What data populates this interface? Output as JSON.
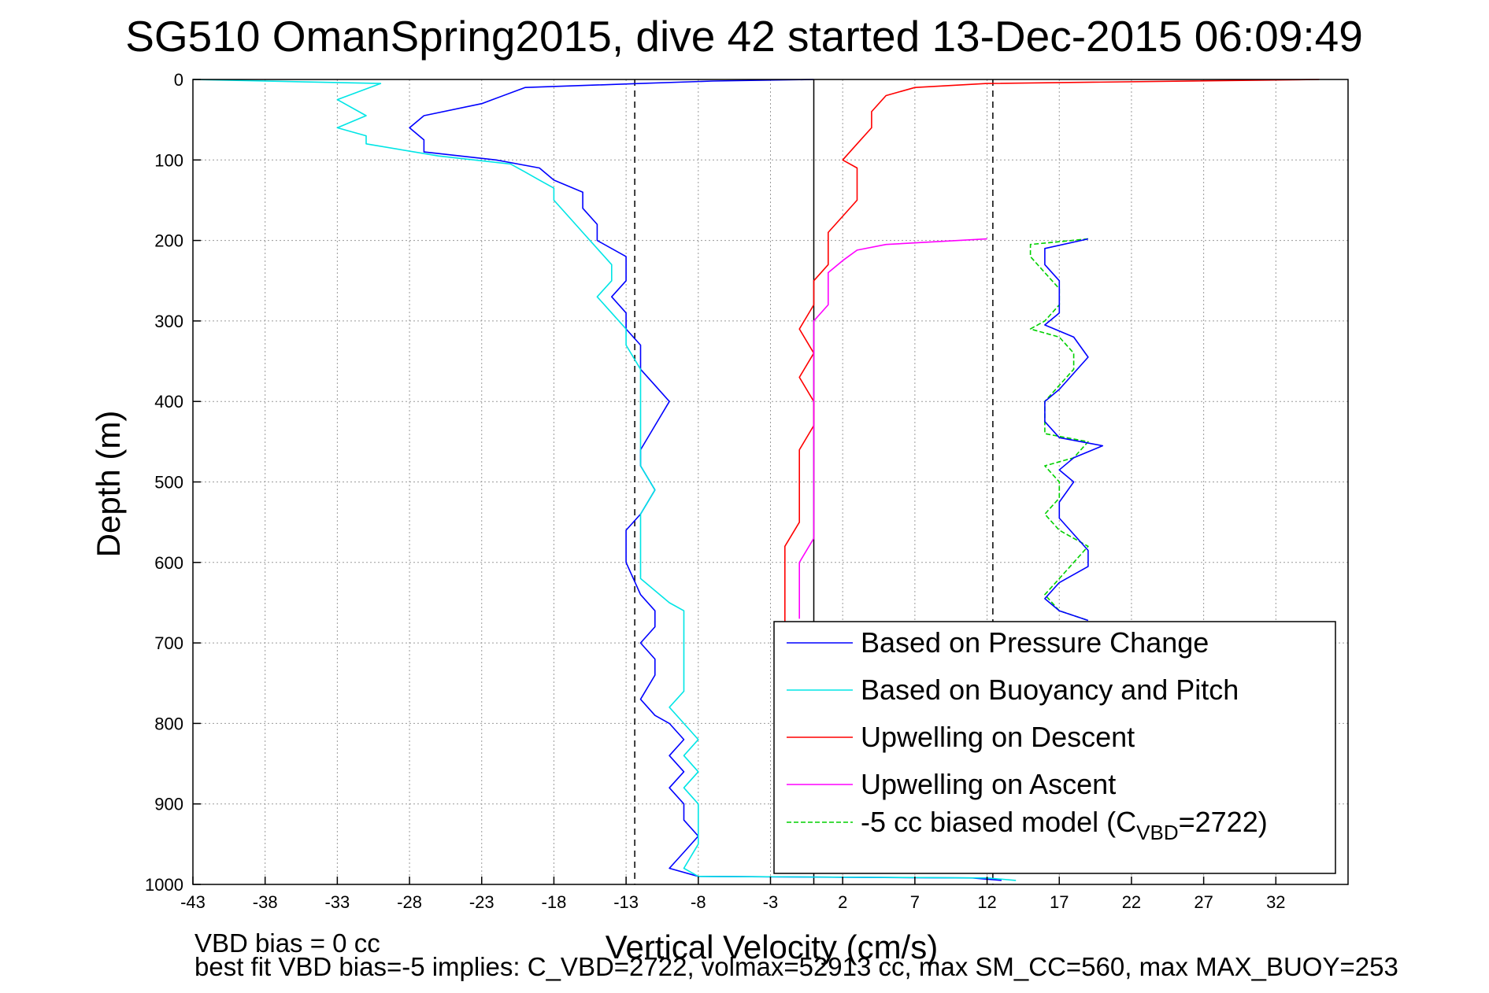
{
  "chart_data": {
    "type": "line",
    "title": "SG510 OmanSpring2015, dive 42 started 13-Dec-2015 06:09:49",
    "xlabel": "Vertical Velocity (cm/s)",
    "ylabel": "Depth (m)",
    "xlim": [
      -43,
      37
    ],
    "ylim": [
      0,
      1000
    ],
    "y_reversed": true,
    "grid": true,
    "legend_position": "bottom-right",
    "x_ticks": [
      -43,
      -38,
      -33,
      -28,
      -23,
      -18,
      -13,
      -8,
      -3,
      2,
      7,
      12,
      17,
      22,
      27,
      32
    ],
    "y_ticks": [
      0,
      100,
      200,
      300,
      400,
      500,
      600,
      700,
      800,
      900,
      1000
    ],
    "reference_lines": [
      {
        "x": -12.4,
        "style": "dashed"
      },
      {
        "x": 0,
        "style": "solid"
      },
      {
        "x": 12.4,
        "style": "dashed"
      }
    ],
    "series": [
      {
        "name": "Based on Pressure Change",
        "color": "#0000ff",
        "points": [
          [
            0,
            0
          ],
          [
            -7,
            2
          ],
          [
            -12,
            5
          ],
          [
            -20,
            10
          ],
          [
            -23,
            30
          ],
          [
            -27,
            45
          ],
          [
            -28,
            60
          ],
          [
            -27,
            75
          ],
          [
            -27,
            90
          ],
          [
            -22,
            100
          ],
          [
            -19,
            110
          ],
          [
            -18,
            125
          ],
          [
            -16,
            140
          ],
          [
            -16,
            160
          ],
          [
            -15,
            180
          ],
          [
            -15,
            200
          ],
          [
            -13,
            220
          ],
          [
            -13,
            250
          ],
          [
            -14,
            270
          ],
          [
            -13,
            290
          ],
          [
            -13,
            310
          ],
          [
            -12,
            330
          ],
          [
            -12,
            360
          ],
          [
            -11,
            380
          ],
          [
            -10,
            400
          ],
          [
            -11,
            430
          ],
          [
            -12,
            460
          ],
          [
            -12,
            480
          ],
          [
            -11,
            510
          ],
          [
            -12,
            540
          ],
          [
            -13,
            560
          ],
          [
            -13,
            580
          ],
          [
            -13,
            600
          ],
          [
            -12,
            640
          ],
          [
            -11,
            660
          ],
          [
            -11,
            680
          ],
          [
            -12,
            700
          ],
          [
            -11,
            720
          ],
          [
            -11,
            740
          ],
          [
            -12,
            770
          ],
          [
            -11,
            790
          ],
          [
            -10,
            800
          ],
          [
            -9,
            820
          ],
          [
            -10,
            840
          ],
          [
            -9,
            860
          ],
          [
            -10,
            880
          ],
          [
            -9,
            900
          ],
          [
            -9,
            920
          ],
          [
            -8,
            940
          ],
          [
            -9,
            960
          ],
          [
            -10,
            980
          ],
          [
            -8,
            990
          ],
          [
            11,
            992
          ],
          [
            13,
            995
          ]
        ]
      },
      {
        "name": "Based on Buoyancy and Pitch",
        "color": "#00e5e5",
        "points": [
          [
            -43,
            0
          ],
          [
            -30,
            5
          ],
          [
            -33,
            25
          ],
          [
            -31,
            45
          ],
          [
            -33,
            60
          ],
          [
            -31,
            70
          ],
          [
            -31,
            80
          ],
          [
            -26,
            95
          ],
          [
            -21,
            105
          ],
          [
            -20,
            115
          ],
          [
            -19,
            125
          ],
          [
            -18,
            135
          ],
          [
            -18,
            150
          ],
          [
            -17,
            170
          ],
          [
            -16,
            190
          ],
          [
            -15,
            210
          ],
          [
            -14,
            230
          ],
          [
            -14,
            250
          ],
          [
            -15,
            270
          ],
          [
            -14,
            290
          ],
          [
            -13,
            310
          ],
          [
            -13,
            330
          ],
          [
            -12,
            360
          ],
          [
            -12,
            380
          ],
          [
            -12,
            400
          ],
          [
            -12,
            430
          ],
          [
            -12,
            460
          ],
          [
            -12,
            480
          ],
          [
            -11,
            510
          ],
          [
            -12,
            540
          ],
          [
            -12,
            560
          ],
          [
            -12,
            580
          ],
          [
            -12,
            600
          ],
          [
            -12,
            620
          ],
          [
            -10,
            650
          ],
          [
            -9,
            660
          ],
          [
            -9,
            700
          ],
          [
            -9,
            730
          ],
          [
            -9,
            760
          ],
          [
            -10,
            780
          ],
          [
            -9,
            800
          ],
          [
            -8,
            820
          ],
          [
            -9,
            840
          ],
          [
            -8,
            860
          ],
          [
            -9,
            880
          ],
          [
            -8,
            900
          ],
          [
            -8,
            920
          ],
          [
            -8,
            950
          ],
          [
            -9,
            980
          ],
          [
            -8,
            990
          ],
          [
            12,
            992
          ],
          [
            14,
            995
          ]
        ]
      },
      {
        "name": "Upwelling on Descent",
        "color": "#ff0000",
        "points": [
          [
            35,
            0
          ],
          [
            12,
            5
          ],
          [
            7,
            10
          ],
          [
            5,
            20
          ],
          [
            4,
            40
          ],
          [
            4,
            60
          ],
          [
            3,
            80
          ],
          [
            2,
            100
          ],
          [
            3,
            110
          ],
          [
            3,
            130
          ],
          [
            3,
            150
          ],
          [
            2,
            170
          ],
          [
            1,
            190
          ],
          [
            1,
            210
          ],
          [
            1,
            230
          ],
          [
            0,
            250
          ],
          [
            0,
            280
          ],
          [
            -1,
            310
          ],
          [
            0,
            340
          ],
          [
            -1,
            370
          ],
          [
            0,
            400
          ],
          [
            0,
            430
          ],
          [
            -1,
            460
          ],
          [
            -1,
            490
          ],
          [
            -1,
            520
          ],
          [
            -1,
            550
          ],
          [
            -2,
            580
          ],
          [
            -2,
            610
          ],
          [
            -2,
            640
          ],
          [
            -2,
            660
          ],
          [
            -2,
            675
          ]
        ]
      },
      {
        "name": "Upwelling on Ascent",
        "color": "#ff00ff",
        "points": [
          [
            12,
            198
          ],
          [
            5,
            205
          ],
          [
            3,
            212
          ],
          [
            2,
            225
          ],
          [
            1,
            240
          ],
          [
            1,
            260
          ],
          [
            1,
            280
          ],
          [
            0,
            300
          ],
          [
            0,
            330
          ],
          [
            0,
            360
          ],
          [
            0,
            390
          ],
          [
            0,
            420
          ],
          [
            0,
            450
          ],
          [
            0,
            480
          ],
          [
            0,
            510
          ],
          [
            0,
            540
          ],
          [
            0,
            570
          ],
          [
            -1,
            600
          ],
          [
            -1,
            630
          ],
          [
            -1,
            655
          ],
          [
            -1,
            670
          ]
        ]
      },
      {
        "name": "-5 cc biased model (C_VBD=2722)",
        "color": "#00d000",
        "dashed": true,
        "points": [
          [
            19,
            198
          ],
          [
            15,
            205
          ],
          [
            15,
            220
          ],
          [
            16,
            240
          ],
          [
            17,
            260
          ],
          [
            17,
            280
          ],
          [
            16,
            300
          ],
          [
            15,
            310
          ],
          [
            17,
            320
          ],
          [
            18,
            340
          ],
          [
            18,
            360
          ],
          [
            17,
            380
          ],
          [
            16,
            400
          ],
          [
            16,
            420
          ],
          [
            16,
            440
          ],
          [
            19,
            450
          ],
          [
            18,
            470
          ],
          [
            16,
            480
          ],
          [
            17,
            500
          ],
          [
            17,
            520
          ],
          [
            16,
            540
          ],
          [
            17,
            560
          ],
          [
            19,
            580
          ],
          [
            18,
            600
          ],
          [
            17,
            620
          ],
          [
            16,
            640
          ],
          [
            17,
            660
          ],
          [
            19,
            672
          ]
        ]
      },
      {
        "name": "-5 cc biased model (C_VBD=2722) ascent",
        "color": "#0000ff",
        "points": [
          [
            19,
            198
          ],
          [
            16,
            210
          ],
          [
            16,
            230
          ],
          [
            17,
            250
          ],
          [
            17,
            270
          ],
          [
            17,
            290
          ],
          [
            16,
            305
          ],
          [
            18,
            320
          ],
          [
            19,
            345
          ],
          [
            18,
            365
          ],
          [
            17,
            385
          ],
          [
            16,
            400
          ],
          [
            16,
            425
          ],
          [
            17,
            445
          ],
          [
            20,
            455
          ],
          [
            18,
            470
          ],
          [
            17,
            485
          ],
          [
            18,
            500
          ],
          [
            17,
            525
          ],
          [
            17,
            545
          ],
          [
            18,
            565
          ],
          [
            19,
            585
          ],
          [
            19,
            605
          ],
          [
            17,
            625
          ],
          [
            16,
            645
          ],
          [
            17,
            660
          ],
          [
            19,
            672
          ]
        ]
      }
    ],
    "legend": [
      {
        "label": "Based on Pressure Change",
        "color": "#0000ff",
        "dashed": false
      },
      {
        "label": "Based on Buoyancy and Pitch",
        "color": "#00e5e5",
        "dashed": false
      },
      {
        "label": "Upwelling on Descent",
        "color": "#ff0000",
        "dashed": false
      },
      {
        "label": "Upwelling on Ascent",
        "color": "#ff00ff",
        "dashed": false
      },
      {
        "label_prefix": "-5 cc biased model (C",
        "label_sub": "VBD",
        "label_suffix": "=2722)",
        "color": "#00d000",
        "dashed": true
      }
    ],
    "annotations": [
      "VBD bias = 0 cc",
      "best fit VBD bias=-5 implies: C_VBD=2722, volmax=52913 cc, max SM_CC=560, max MAX_BUOY=253"
    ]
  }
}
